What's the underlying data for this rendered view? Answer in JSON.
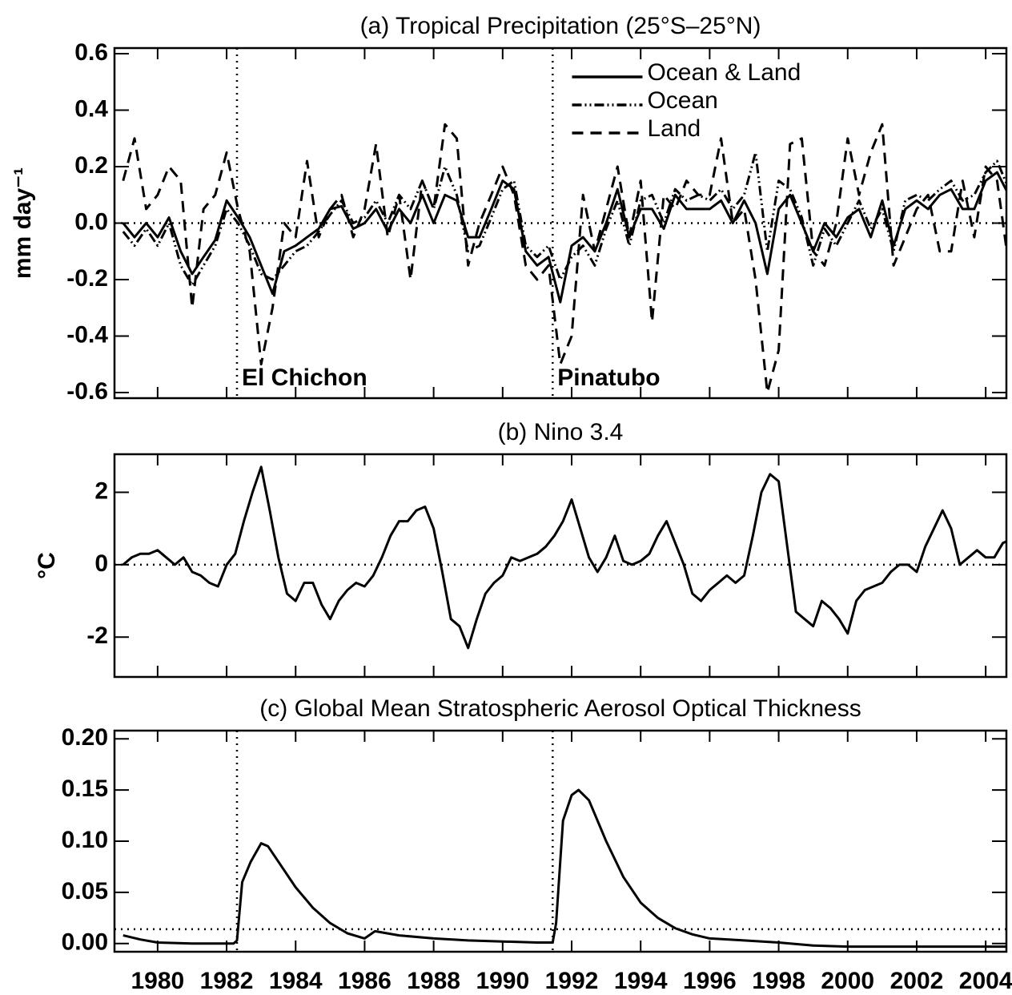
{
  "chart_data": [
    {
      "type": "line",
      "title": "(a) Tropical Precipitation (25°S–25°N)",
      "ylabel": "mm day⁻¹",
      "xlim": [
        1978.75,
        2004.6
      ],
      "ylim": [
        -0.62,
        0.62
      ],
      "yticks": [
        0.6,
        0.4,
        0.2,
        {
          "value": 0,
          "label": "0.0"
        },
        -0.2,
        -0.4,
        -0.6
      ],
      "hline": 0,
      "legend": "upper center",
      "events": [
        {
          "x": 1982.3,
          "label": "El Chichon"
        },
        {
          "x": 1991.45,
          "label": "Pinatubo"
        }
      ],
      "x": [
        1979.0,
        1979.33,
        1979.67,
        1980.0,
        1980.33,
        1980.67,
        1981.0,
        1981.33,
        1981.67,
        1982.0,
        1982.33,
        1982.67,
        1983.0,
        1983.33,
        1983.67,
        1984.0,
        1984.33,
        1984.67,
        1985.0,
        1985.33,
        1985.67,
        1986.0,
        1986.33,
        1986.67,
        1987.0,
        1987.33,
        1987.67,
        1988.0,
        1988.33,
        1988.67,
        1989.0,
        1989.33,
        1989.67,
        1990.0,
        1990.33,
        1990.67,
        1991.0,
        1991.33,
        1991.67,
        1992.0,
        1992.33,
        1992.67,
        1993.0,
        1993.33,
        1993.67,
        1994.0,
        1994.33,
        1994.67,
        1995.0,
        1995.33,
        1995.67,
        1996.0,
        1996.33,
        1996.67,
        1997.0,
        1997.33,
        1997.67,
        1998.0,
        1998.33,
        1998.67,
        1999.0,
        1999.33,
        1999.67,
        2000.0,
        2000.33,
        2000.67,
        2001.0,
        2001.33,
        2001.67,
        2002.0,
        2002.33,
        2002.67,
        2003.0,
        2003.33,
        2003.67,
        2004.0,
        2004.33,
        2004.67
      ],
      "series": [
        {
          "name": "Ocean & Land",
          "color": "#000000",
          "dash": "solid",
          "values": [
            0.0,
            -0.05,
            0.0,
            -0.05,
            0.02,
            -0.1,
            -0.18,
            -0.12,
            -0.06,
            0.08,
            0.02,
            -0.05,
            -0.15,
            -0.25,
            -0.1,
            -0.08,
            -0.05,
            -0.02,
            0.05,
            0.06,
            -0.02,
            0.0,
            0.05,
            -0.03,
            0.05,
            0.0,
            0.1,
            0.0,
            0.1,
            0.08,
            -0.05,
            -0.05,
            0.05,
            0.15,
            0.12,
            -0.1,
            -0.15,
            -0.12,
            -0.28,
            -0.08,
            -0.05,
            -0.1,
            0.0,
            0.12,
            -0.05,
            0.05,
            0.05,
            -0.02,
            0.1,
            0.05,
            0.05,
            0.05,
            0.08,
            0.0,
            0.08,
            0.0,
            -0.18,
            0.05,
            0.1,
            0.0,
            -0.1,
            0.0,
            -0.05,
            0.02,
            0.05,
            -0.05,
            0.08,
            -0.08,
            0.05,
            0.08,
            0.05,
            0.1,
            0.12,
            0.05,
            0.05,
            0.15,
            0.18,
            0.1
          ]
        },
        {
          "name": "Ocean",
          "color": "#000000",
          "dash": "dashdotdot",
          "values": [
            -0.03,
            -0.08,
            -0.02,
            -0.08,
            0.0,
            -0.15,
            -0.22,
            -0.15,
            -0.08,
            0.05,
            0.0,
            -0.08,
            -0.18,
            -0.2,
            -0.15,
            -0.1,
            -0.08,
            -0.03,
            0.03,
            0.08,
            0.0,
            0.02,
            0.08,
            0.0,
            0.1,
            0.05,
            0.15,
            0.05,
            0.2,
            0.1,
            -0.1,
            -0.08,
            0.02,
            0.12,
            0.15,
            -0.08,
            -0.12,
            -0.08,
            -0.2,
            -0.12,
            -0.08,
            -0.15,
            -0.02,
            0.08,
            -0.08,
            0.08,
            0.1,
            0.0,
            0.12,
            0.08,
            0.1,
            0.08,
            0.12,
            0.05,
            0.1,
            0.25,
            -0.1,
            0.15,
            0.12,
            0.02,
            -0.15,
            -0.02,
            -0.08,
            0.0,
            0.08,
            -0.02,
            0.05,
            -0.1,
            0.08,
            0.1,
            0.08,
            0.12,
            0.15,
            0.08,
            0.1,
            0.18,
            0.22,
            0.12
          ]
        },
        {
          "name": "Land",
          "color": "#000000",
          "dash": "dashed",
          "values": [
            0.15,
            0.3,
            0.05,
            0.1,
            0.2,
            0.15,
            -0.3,
            0.05,
            0.1,
            0.25,
            0.05,
            -0.1,
            -0.5,
            -0.3,
            0.0,
            -0.05,
            0.22,
            -0.05,
            0.05,
            0.1,
            -0.05,
            0.05,
            0.28,
            -0.05,
            0.1,
            -0.2,
            0.15,
            0.05,
            0.35,
            0.3,
            -0.15,
            0.0,
            0.1,
            0.2,
            0.1,
            -0.15,
            -0.2,
            -0.15,
            -0.5,
            -0.4,
            0.1,
            -0.1,
            0.05,
            0.2,
            -0.05,
            0.15,
            -0.35,
            0.1,
            0.05,
            0.15,
            0.1,
            0.1,
            0.3,
            0.0,
            0.05,
            -0.2,
            -0.6,
            -0.45,
            0.28,
            0.3,
            -0.1,
            -0.15,
            0.0,
            0.3,
            0.1,
            0.25,
            0.35,
            -0.15,
            -0.05,
            0.05,
            0.1,
            -0.1,
            -0.1,
            0.15,
            -0.05,
            0.2,
            0.15,
            -0.15
          ]
        }
      ]
    },
    {
      "type": "line",
      "title": "(b) Nino 3.4",
      "ylabel": "°C",
      "xlim": [
        1978.75,
        2004.6
      ],
      "ylim": [
        -3.1,
        3.05
      ],
      "yticks": [
        2,
        0,
        -2
      ],
      "hline": 0,
      "x": [
        1979.0,
        1979.25,
        1979.5,
        1979.75,
        1980.0,
        1980.25,
        1980.5,
        1980.75,
        1981.0,
        1981.25,
        1981.5,
        1981.75,
        1982.0,
        1982.25,
        1982.5,
        1982.75,
        1983.0,
        1983.25,
        1983.5,
        1983.75,
        1984.0,
        1984.25,
        1984.5,
        1984.75,
        1985.0,
        1985.25,
        1985.5,
        1985.75,
        1986.0,
        1986.25,
        1986.5,
        1986.75,
        1987.0,
        1987.25,
        1987.5,
        1987.75,
        1988.0,
        1988.25,
        1988.5,
        1988.75,
        1989.0,
        1989.25,
        1989.5,
        1989.75,
        1990.0,
        1990.25,
        1990.5,
        1990.75,
        1991.0,
        1991.25,
        1991.5,
        1991.75,
        1992.0,
        1992.25,
        1992.5,
        1992.75,
        1993.0,
        1993.25,
        1993.5,
        1993.75,
        1994.0,
        1994.25,
        1994.5,
        1994.75,
        1995.0,
        1995.25,
        1995.5,
        1995.75,
        1996.0,
        1996.25,
        1996.5,
        1996.75,
        1997.0,
        1997.25,
        1997.5,
        1997.75,
        1998.0,
        1998.25,
        1998.5,
        1998.75,
        1999.0,
        1999.25,
        1999.5,
        1999.75,
        2000.0,
        2000.25,
        2000.5,
        2000.75,
        2001.0,
        2001.25,
        2001.5,
        2001.75,
        2002.0,
        2002.25,
        2002.5,
        2002.75,
        2003.0,
        2003.25,
        2003.5,
        2003.75,
        2004.0,
        2004.25,
        2004.5,
        2004.75
      ],
      "series": [
        {
          "color": "#000000",
          "dash": "solid",
          "values": [
            0.0,
            0.2,
            0.3,
            0.3,
            0.4,
            0.2,
            0.0,
            0.2,
            -0.2,
            -0.3,
            -0.5,
            -0.6,
            0.0,
            0.3,
            1.2,
            2.0,
            2.7,
            1.5,
            0.2,
            -0.8,
            -1.0,
            -0.5,
            -0.5,
            -1.1,
            -1.5,
            -1.0,
            -0.7,
            -0.5,
            -0.6,
            -0.3,
            0.2,
            0.8,
            1.2,
            1.2,
            1.5,
            1.6,
            1.0,
            -0.2,
            -1.5,
            -1.7,
            -2.3,
            -1.5,
            -0.8,
            -0.5,
            -0.3,
            0.2,
            0.1,
            0.2,
            0.3,
            0.5,
            0.8,
            1.2,
            1.8,
            1.0,
            0.2,
            -0.2,
            0.2,
            0.8,
            0.1,
            0.0,
            0.1,
            0.3,
            0.8,
            1.2,
            0.6,
            0.0,
            -0.8,
            -1.0,
            -0.7,
            -0.5,
            -0.3,
            -0.5,
            -0.3,
            0.8,
            2.0,
            2.5,
            2.3,
            0.5,
            -1.3,
            -1.5,
            -1.7,
            -1.0,
            -1.2,
            -1.5,
            -1.9,
            -1.0,
            -0.7,
            -0.6,
            -0.5,
            -0.2,
            0.0,
            0.0,
            -0.2,
            0.5,
            1.0,
            1.5,
            1.0,
            0.0,
            0.2,
            0.4,
            0.2,
            0.2,
            0.6,
            0.7
          ]
        }
      ]
    },
    {
      "type": "line",
      "title": "(c) Global Mean Stratospheric Aerosol Optical Thickness",
      "xlim": [
        1978.75,
        2004.6
      ],
      "ylim": [
        -0.008,
        0.208
      ],
      "yticks": [
        {
          "value": 0.2,
          "label": "0.20"
        },
        0.15,
        {
          "value": 0.1,
          "label": "0.10"
        },
        0.05,
        {
          "value": 0,
          "label": "0.00"
        }
      ],
      "xticks": [
        1980,
        1982,
        1984,
        1986,
        1988,
        1990,
        1992,
        1994,
        1996,
        1998,
        2000,
        2002,
        2004
      ],
      "hline": 0.014,
      "events": [
        {
          "x": 1982.3
        },
        {
          "x": 1991.45
        }
      ],
      "x": [
        1979.0,
        1979.5,
        1980.0,
        1981.0,
        1982.2,
        1982.3,
        1982.45,
        1982.7,
        1983.0,
        1983.2,
        1983.5,
        1984.0,
        1984.5,
        1985.0,
        1985.5,
        1986.0,
        1986.3,
        1987.0,
        1988.0,
        1989.0,
        1990.0,
        1991.0,
        1991.45,
        1991.55,
        1991.75,
        1992.0,
        1992.2,
        1992.5,
        1993.0,
        1993.5,
        1994.0,
        1994.5,
        1995.0,
        1995.5,
        1996.0,
        1997.0,
        1998.0,
        1999.0,
        2000.0,
        2001.0,
        2004.6
      ],
      "series": [
        {
          "color": "#000000",
          "dash": "solid",
          "values": [
            0.008,
            0.004,
            0.001,
            0.0,
            0.0,
            0.003,
            0.06,
            0.08,
            0.098,
            0.095,
            0.08,
            0.055,
            0.035,
            0.02,
            0.01,
            0.005,
            0.012,
            0.008,
            0.005,
            0.003,
            0.002,
            0.001,
            0.001,
            0.02,
            0.12,
            0.145,
            0.15,
            0.14,
            0.1,
            0.065,
            0.04,
            0.025,
            0.015,
            0.009,
            0.005,
            0.003,
            0.001,
            -0.002,
            -0.003,
            -0.003,
            -0.003
          ]
        }
      ]
    }
  ]
}
